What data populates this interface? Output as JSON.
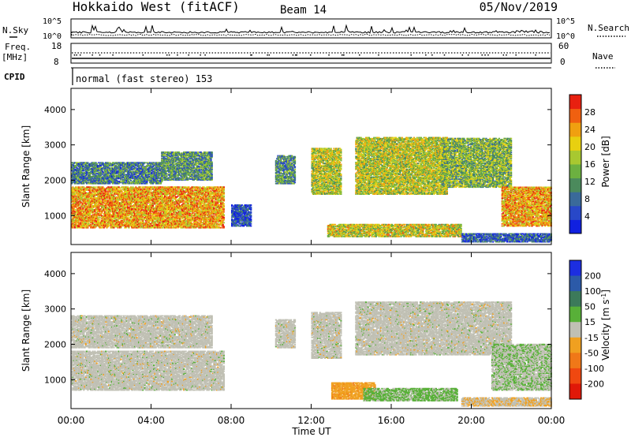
{
  "header": {
    "station": "Hokkaido West (fitACF)",
    "beam": "Beam 14",
    "date": "05/Nov/2019"
  },
  "noise_panel": {
    "left_label": "N.Sky",
    "right_label": "N.Search",
    "left_ticks": [
      "10^5",
      "10^0"
    ],
    "right_ticks": [
      "10^5",
      "10^0"
    ]
  },
  "freq_panel": {
    "left_label_1": "Freq.",
    "left_label_2": "[MHz]",
    "right_label": "Nave",
    "left_ticks": [
      "18",
      "8"
    ],
    "right_ticks": [
      "60",
      "0"
    ]
  },
  "cpid_panel": {
    "label": "CPID",
    "text": "normal (fast stereo) 153"
  },
  "colors": {
    "power": [
      "#1020e0",
      "#2848c8",
      "#3a6a9a",
      "#4b8a5c",
      "#6cb040",
      "#a8c830",
      "#e8d010",
      "#f0a010",
      "#f06010",
      "#e82010"
    ],
    "velocity": [
      "#1c2ee0",
      "#2c5aa8",
      "#3c7a5a",
      "#58b038",
      "#c0c0b4",
      "#f0a020",
      "#f07818",
      "#f04810",
      "#e01808"
    ]
  },
  "chart_data": [
    {
      "type": "heatmap",
      "name": "Power",
      "ylabel": "Slant Range [km]",
      "yticks": [
        "1000",
        "2000",
        "3000",
        "4000"
      ],
      "ylim": [
        180,
        4600
      ],
      "xlim": [
        0,
        24
      ],
      "colorbar_label": "Power [dB]",
      "colorbar_ticks": [
        "4",
        "8",
        "12",
        "16",
        "20",
        "24",
        "28"
      ],
      "color_range": [
        0,
        30
      ],
      "regions": [
        {
          "t0": 0.0,
          "t1": 7.6,
          "r0": 650,
          "r1": 1800,
          "v": 22
        },
        {
          "t0": 0.0,
          "t1": 4.5,
          "r0": 1900,
          "r1": 2500,
          "v": 9
        },
        {
          "t0": 4.5,
          "t1": 7.0,
          "r0": 2000,
          "r1": 2800,
          "v": 11
        },
        {
          "t0": 8.0,
          "t1": 9.0,
          "r0": 700,
          "r1": 1300,
          "v": 5
        },
        {
          "t0": 10.2,
          "t1": 11.2,
          "r0": 1900,
          "r1": 2700,
          "v": 10
        },
        {
          "t0": 12.0,
          "t1": 13.5,
          "r0": 1600,
          "r1": 2900,
          "v": 17
        },
        {
          "t0": 12.8,
          "t1": 19.5,
          "r0": 400,
          "r1": 750,
          "v": 18
        },
        {
          "t0": 14.2,
          "t1": 18.8,
          "r0": 1600,
          "r1": 3200,
          "v": 17
        },
        {
          "t0": 18.5,
          "t1": 22.0,
          "r0": 1800,
          "r1": 3200,
          "v": 14
        },
        {
          "t0": 21.5,
          "t1": 24.0,
          "r0": 700,
          "r1": 1800,
          "v": 22
        },
        {
          "t0": 19.5,
          "t1": 24.0,
          "r0": 250,
          "r1": 500,
          "v": 6
        }
      ]
    },
    {
      "type": "heatmap",
      "name": "Velocity",
      "ylabel": "Slant Range [km]",
      "yticks": [
        "1000",
        "2000",
        "3000",
        "4000"
      ],
      "ylim": [
        180,
        4600
      ],
      "xlim": [
        0,
        24
      ],
      "xlabel": "Time UT",
      "xticks": [
        "00:00",
        "04:00",
        "08:00",
        "12:00",
        "16:00",
        "20:00",
        "00:00"
      ],
      "colorbar_label": "Velocity [m s^-1]",
      "colorbar_ticks": [
        "200",
        "100",
        "50",
        "15",
        "-15",
        "-50",
        "-100",
        "-200"
      ],
      "color_range": [
        -250,
        250
      ],
      "regions": [
        {
          "t0": 0.0,
          "t1": 7.6,
          "r0": 700,
          "r1": 1800,
          "v": 0
        },
        {
          "t0": 0.0,
          "t1": 7.0,
          "r0": 1900,
          "r1": 2800,
          "v": 0
        },
        {
          "t0": 10.2,
          "t1": 11.2,
          "r0": 1900,
          "r1": 2700,
          "v": 0
        },
        {
          "t0": 12.0,
          "t1": 13.5,
          "r0": 1600,
          "r1": 2900,
          "v": 0
        },
        {
          "t0": 13.0,
          "t1": 15.2,
          "r0": 450,
          "r1": 900,
          "v": -60
        },
        {
          "t0": 14.6,
          "t1": 19.3,
          "r0": 400,
          "r1": 750,
          "v": 40
        },
        {
          "t0": 14.2,
          "t1": 22.0,
          "r0": 1700,
          "r1": 3200,
          "v": 0
        },
        {
          "t0": 21.0,
          "t1": 24.0,
          "r0": 700,
          "r1": 2000,
          "v": 20
        },
        {
          "t0": 19.5,
          "t1": 24.0,
          "r0": 250,
          "r1": 500,
          "v": -20
        }
      ]
    }
  ]
}
